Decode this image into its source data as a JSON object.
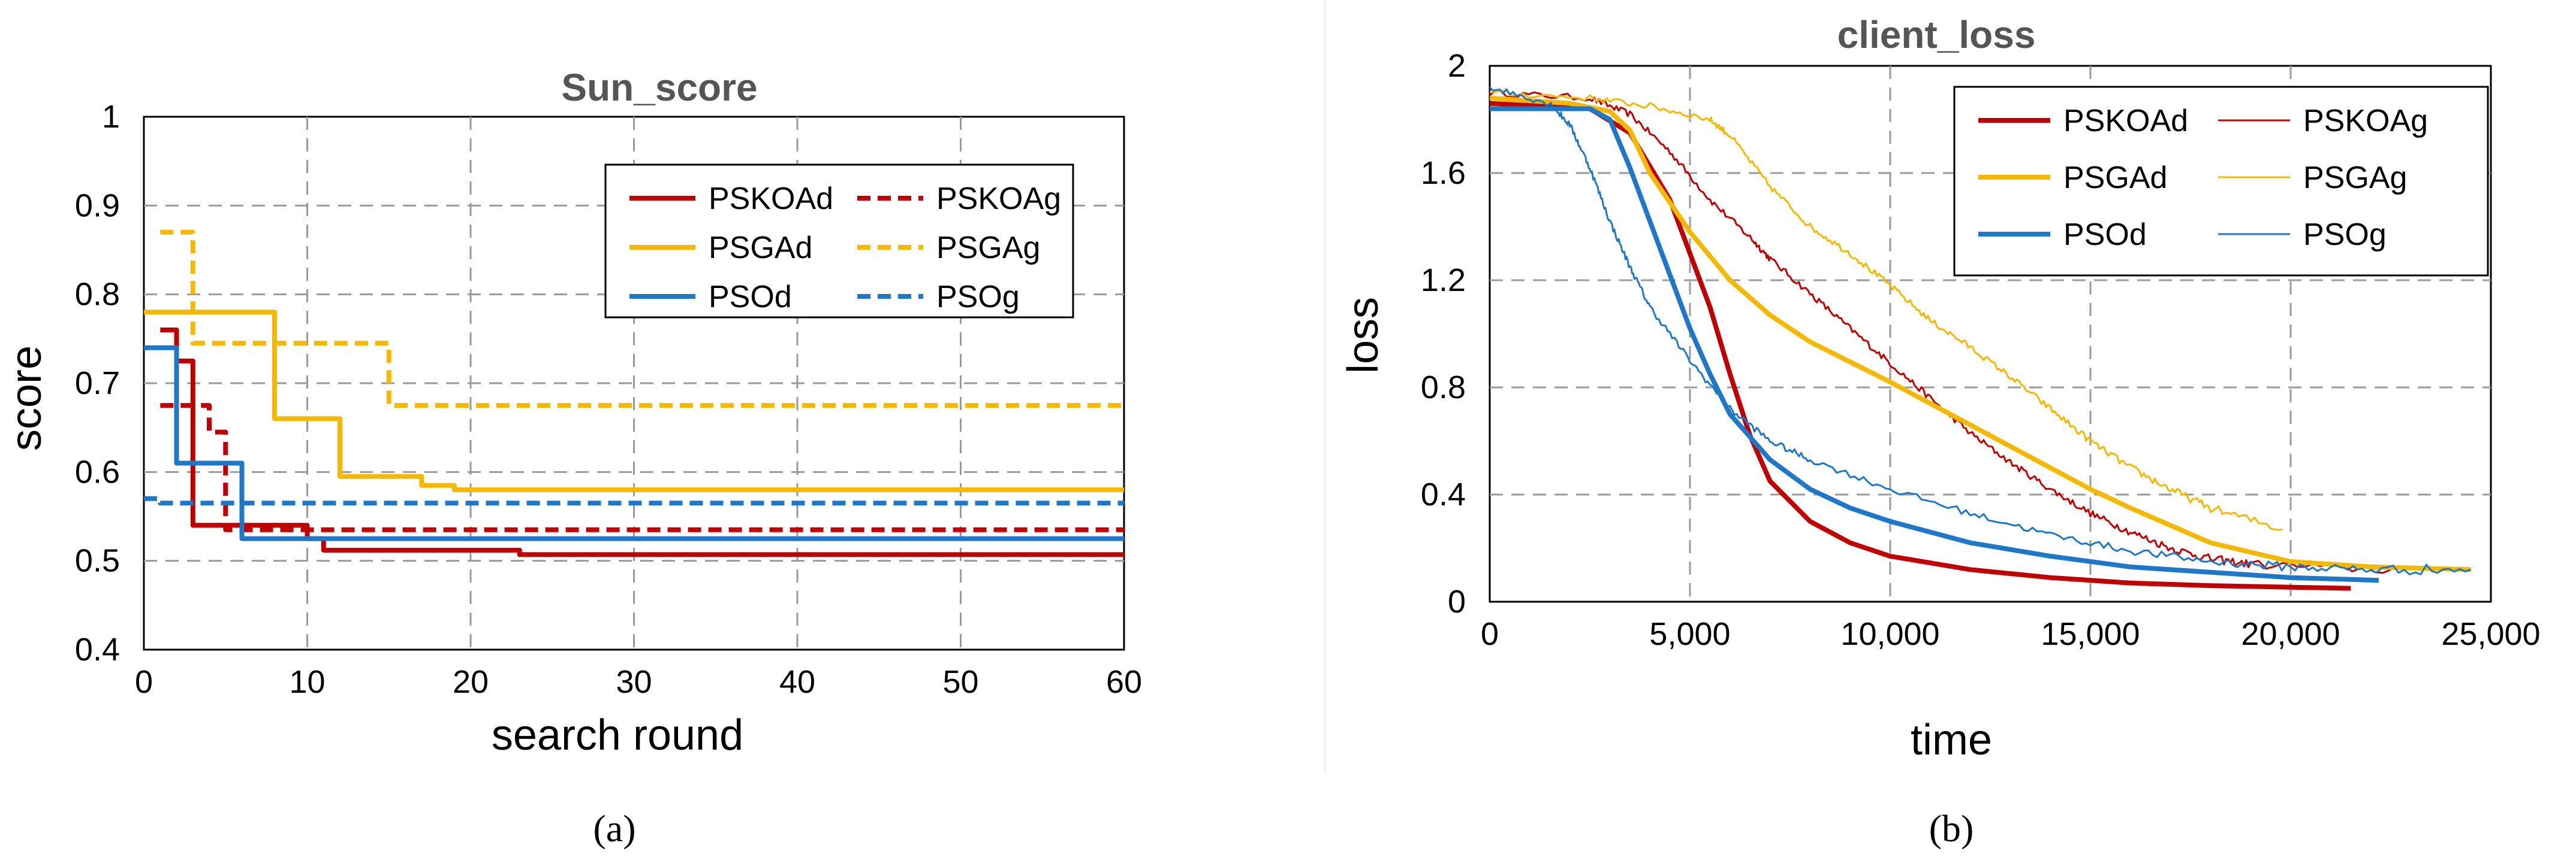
{
  "chart_data": [
    {
      "type": "line",
      "panel_label": "(a)",
      "title": "Sun_score",
      "xlabel": "search round",
      "ylabel": "score",
      "xlim": [
        0,
        60
      ],
      "ylim": [
        0.4,
        1
      ],
      "xticks": [
        0,
        10,
        20,
        30,
        40,
        50,
        60
      ],
      "yticks": [
        "0.4",
        "0.5",
        "0.6",
        "0.7",
        "0.8",
        "0.9",
        "1"
      ],
      "grid": true,
      "legend": "top-right",
      "series": [
        {
          "name": "PSKOAd",
          "color": "#c00000",
          "style": "solid",
          "step": true,
          "x": [
            1,
            2,
            3,
            5,
            10,
            11,
            23,
            60
          ],
          "y": [
            0.76,
            0.725,
            0.54,
            0.54,
            0.525,
            0.512,
            0.507,
            0.507
          ]
        },
        {
          "name": "PSKOAg",
          "color": "#c00000",
          "style": "dashed",
          "step": true,
          "x": [
            1,
            3,
            4,
            5,
            60
          ],
          "y": [
            0.675,
            0.675,
            0.645,
            0.535,
            0.535
          ]
        },
        {
          "name": "PSGAd",
          "color": "#f5b800",
          "style": "solid",
          "step": true,
          "x": [
            0,
            7,
            8,
            11,
            12,
            16,
            17,
            18,
            19,
            60
          ],
          "y": [
            0.78,
            0.78,
            0.66,
            0.66,
            0.595,
            0.595,
            0.585,
            0.585,
            0.58,
            0.58
          ]
        },
        {
          "name": "PSGAg",
          "color": "#f5b800",
          "style": "dashed",
          "step": true,
          "x": [
            1,
            2,
            3,
            14,
            15,
            60
          ],
          "y": [
            0.87,
            0.87,
            0.745,
            0.745,
            0.675,
            0.675
          ]
        },
        {
          "name": "PSOd",
          "color": "#1f77c8",
          "style": "solid",
          "step": true,
          "x": [
            0,
            1,
            2,
            5,
            6,
            60
          ],
          "y": [
            0.74,
            0.74,
            0.61,
            0.61,
            0.525,
            0.525
          ]
        },
        {
          "name": "PSOg",
          "color": "#1f77c8",
          "style": "dashed",
          "step": true,
          "x": [
            0,
            1,
            60
          ],
          "y": [
            0.57,
            0.565,
            0.565
          ]
        }
      ]
    },
    {
      "type": "line",
      "panel_label": "(b)",
      "title": "client_loss",
      "xlabel": "time",
      "ylabel": "loss",
      "xlim": [
        0,
        25000
      ],
      "ylim": [
        0,
        2
      ],
      "xticks": [
        "0",
        "5,000",
        "10,000",
        "15,000",
        "20,000",
        "25,000"
      ],
      "yticks": [
        "0",
        "0.4",
        "0.8",
        "1.2",
        "1.6",
        "2"
      ],
      "grid": true,
      "legend": "top-right",
      "series": [
        {
          "name": "PSKOAd",
          "color": "#c00000",
          "width": "thick",
          "x": [
            0,
            2500,
            3500,
            4500,
            5000,
            5500,
            6000,
            6500,
            7000,
            8000,
            9000,
            10000,
            12000,
            14000,
            16000,
            18000,
            21500
          ],
          "y": [
            1.86,
            1.84,
            1.75,
            1.5,
            1.3,
            1.1,
            0.85,
            0.62,
            0.45,
            0.3,
            0.22,
            0.17,
            0.12,
            0.09,
            0.07,
            0.06,
            0.05
          ]
        },
        {
          "name": "PSKOAg",
          "color": "#c00000",
          "width": "thin",
          "noisy": true,
          "x": [
            0,
            2500,
            3500,
            4500,
            5500,
            6500,
            7000,
            8000,
            9000,
            10000,
            11000,
            12000,
            13000,
            14000,
            15000,
            16000,
            17000,
            18000,
            19000,
            22500
          ],
          "y": [
            1.9,
            1.88,
            1.82,
            1.68,
            1.5,
            1.36,
            1.28,
            1.15,
            1.02,
            0.89,
            0.76,
            0.63,
            0.52,
            0.42,
            0.33,
            0.26,
            0.2,
            0.16,
            0.14,
            0.12
          ]
        },
        {
          "name": "PSGAd",
          "color": "#f5b800",
          "width": "thick",
          "x": [
            0,
            2000,
            3000,
            3500,
            4000,
            5000,
            6000,
            7000,
            8000,
            10000,
            12000,
            14000,
            15000,
            16000,
            18000,
            20000,
            22000,
            24500
          ],
          "y": [
            1.88,
            1.86,
            1.83,
            1.76,
            1.6,
            1.38,
            1.2,
            1.07,
            0.97,
            0.82,
            0.66,
            0.5,
            0.42,
            0.35,
            0.22,
            0.15,
            0.13,
            0.12
          ]
        },
        {
          "name": "PSGAg",
          "color": "#f5b800",
          "width": "thin",
          "noisy": true,
          "x": [
            0,
            2500,
            4000,
            5500,
            6000,
            7000,
            8000,
            9000,
            10000,
            11000,
            12000,
            13000,
            14000,
            15000,
            16000,
            17000,
            18000,
            19800
          ],
          "y": [
            1.9,
            1.88,
            1.85,
            1.8,
            1.74,
            1.55,
            1.4,
            1.3,
            1.18,
            1.05,
            0.95,
            0.84,
            0.72,
            0.6,
            0.5,
            0.42,
            0.35,
            0.27
          ]
        },
        {
          "name": "PSOd",
          "color": "#1f77c8",
          "width": "thick",
          "x": [
            0,
            2500,
            3000,
            3500,
            4000,
            4500,
            5000,
            5500,
            6000,
            7000,
            8000,
            9000,
            10000,
            12000,
            14000,
            16000,
            18000,
            20000,
            22200
          ],
          "y": [
            1.84,
            1.84,
            1.8,
            1.62,
            1.42,
            1.22,
            1.02,
            0.85,
            0.7,
            0.53,
            0.42,
            0.35,
            0.3,
            0.22,
            0.17,
            0.13,
            0.11,
            0.09,
            0.08
          ]
        },
        {
          "name": "PSOg",
          "color": "#1f77c8",
          "width": "thin",
          "noisy": true,
          "x": [
            0,
            1500,
            2000,
            2500,
            3000,
            3500,
            4000,
            5000,
            6000,
            7000,
            8000,
            10000,
            12000,
            14000,
            16000,
            18000,
            20000,
            22000,
            24500
          ],
          "y": [
            1.92,
            1.86,
            1.78,
            1.62,
            1.42,
            1.25,
            1.1,
            0.9,
            0.72,
            0.6,
            0.53,
            0.42,
            0.33,
            0.25,
            0.19,
            0.15,
            0.13,
            0.12,
            0.12
          ]
        }
      ]
    }
  ]
}
